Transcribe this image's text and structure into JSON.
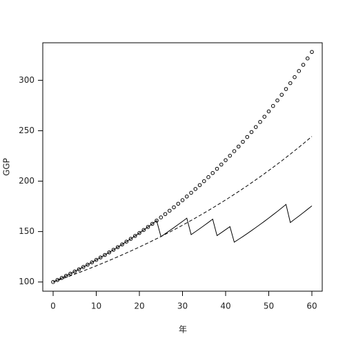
{
  "chart_data": {
    "type": "line",
    "x_label": "年",
    "y_label": "GGP",
    "x": [
      0,
      1,
      2,
      3,
      4,
      5,
      6,
      7,
      8,
      9,
      10,
      11,
      12,
      13,
      14,
      15,
      16,
      17,
      18,
      19,
      20,
      21,
      22,
      23,
      24,
      25,
      26,
      27,
      28,
      29,
      30,
      31,
      32,
      33,
      34,
      35,
      36,
      37,
      38,
      39,
      40,
      41,
      42,
      43,
      44,
      45,
      46,
      47,
      48,
      49,
      50,
      51,
      52,
      53,
      54,
      55,
      56,
      57,
      58,
      59,
      60
    ],
    "series": [
      {
        "style": "points",
        "color": "#000000",
        "values": [
          100,
          102,
          104.04,
          106.12,
          108.24,
          110.41,
          112.62,
          114.87,
          117.17,
          119.51,
          121.9,
          124.34,
          126.82,
          129.36,
          131.95,
          134.59,
          137.28,
          140.02,
          142.82,
          145.68,
          148.59,
          151.57,
          154.6,
          157.69,
          160.84,
          164.06,
          167.34,
          170.69,
          174.1,
          177.59,
          181.14,
          184.76,
          188.45,
          192.22,
          196.07,
          199.99,
          203.99,
          208.07,
          212.23,
          216.47,
          220.8,
          225.22,
          229.73,
          234.32,
          239.01,
          243.79,
          248.66,
          253.64,
          258.71,
          263.88,
          269.16,
          274.54,
          280.03,
          285.64,
          291.35,
          297.17,
          303.12,
          309.18,
          315.36,
          321.67,
          328.1
        ]
      },
      {
        "style": "dashed",
        "color": "#000000",
        "values": [
          100,
          101.5,
          103.02,
          104.57,
          106.14,
          107.73,
          109.34,
          110.98,
          112.65,
          114.34,
          116.05,
          117.79,
          119.56,
          121.36,
          123.18,
          125.02,
          126.9,
          128.8,
          130.73,
          132.69,
          134.69,
          136.71,
          138.76,
          140.84,
          142.95,
          145.09,
          147.27,
          149.48,
          151.72,
          154,
          156.31,
          158.65,
          161.03,
          163.45,
          165.9,
          168.39,
          170.91,
          173.48,
          176.08,
          178.72,
          181.4,
          184.12,
          186.89,
          189.69,
          192.54,
          195.42,
          198.36,
          201.33,
          204.35,
          207.42,
          210.53,
          213.69,
          216.89,
          220.14,
          223.45,
          226.8,
          230.2,
          233.65,
          237.16,
          240.72,
          244.33
        ]
      },
      {
        "style": "solid",
        "color": "#000000",
        "values": [
          100,
          102,
          104.04,
          106.12,
          108.24,
          110.41,
          112.62,
          114.87,
          117.17,
          119.51,
          121.9,
          124.34,
          126.82,
          129.36,
          131.95,
          134.59,
          137.28,
          140.02,
          142.82,
          145.68,
          148.59,
          151.57,
          154.6,
          157.69,
          160.84,
          145,
          147.9,
          150.9,
          153.9,
          157,
          160.1,
          163.3,
          147,
          149.9,
          152.9,
          156,
          159.1,
          162.3,
          146,
          148.9,
          151.9,
          154.9,
          139.5,
          142.3,
          145.1,
          148,
          151,
          154,
          157.1,
          160.2,
          163.4,
          166.7,
          170,
          173.4,
          176.9,
          159,
          162.2,
          165.4,
          168.7,
          172.1,
          175.5
        ]
      }
    ],
    "xlim": [
      -2.4,
      62.4
    ],
    "ylim": [
      90.9,
      337.2
    ],
    "xticks": [
      0,
      10,
      20,
      30,
      40,
      50,
      60
    ],
    "yticks": [
      100,
      150,
      200,
      250,
      300
    ]
  }
}
